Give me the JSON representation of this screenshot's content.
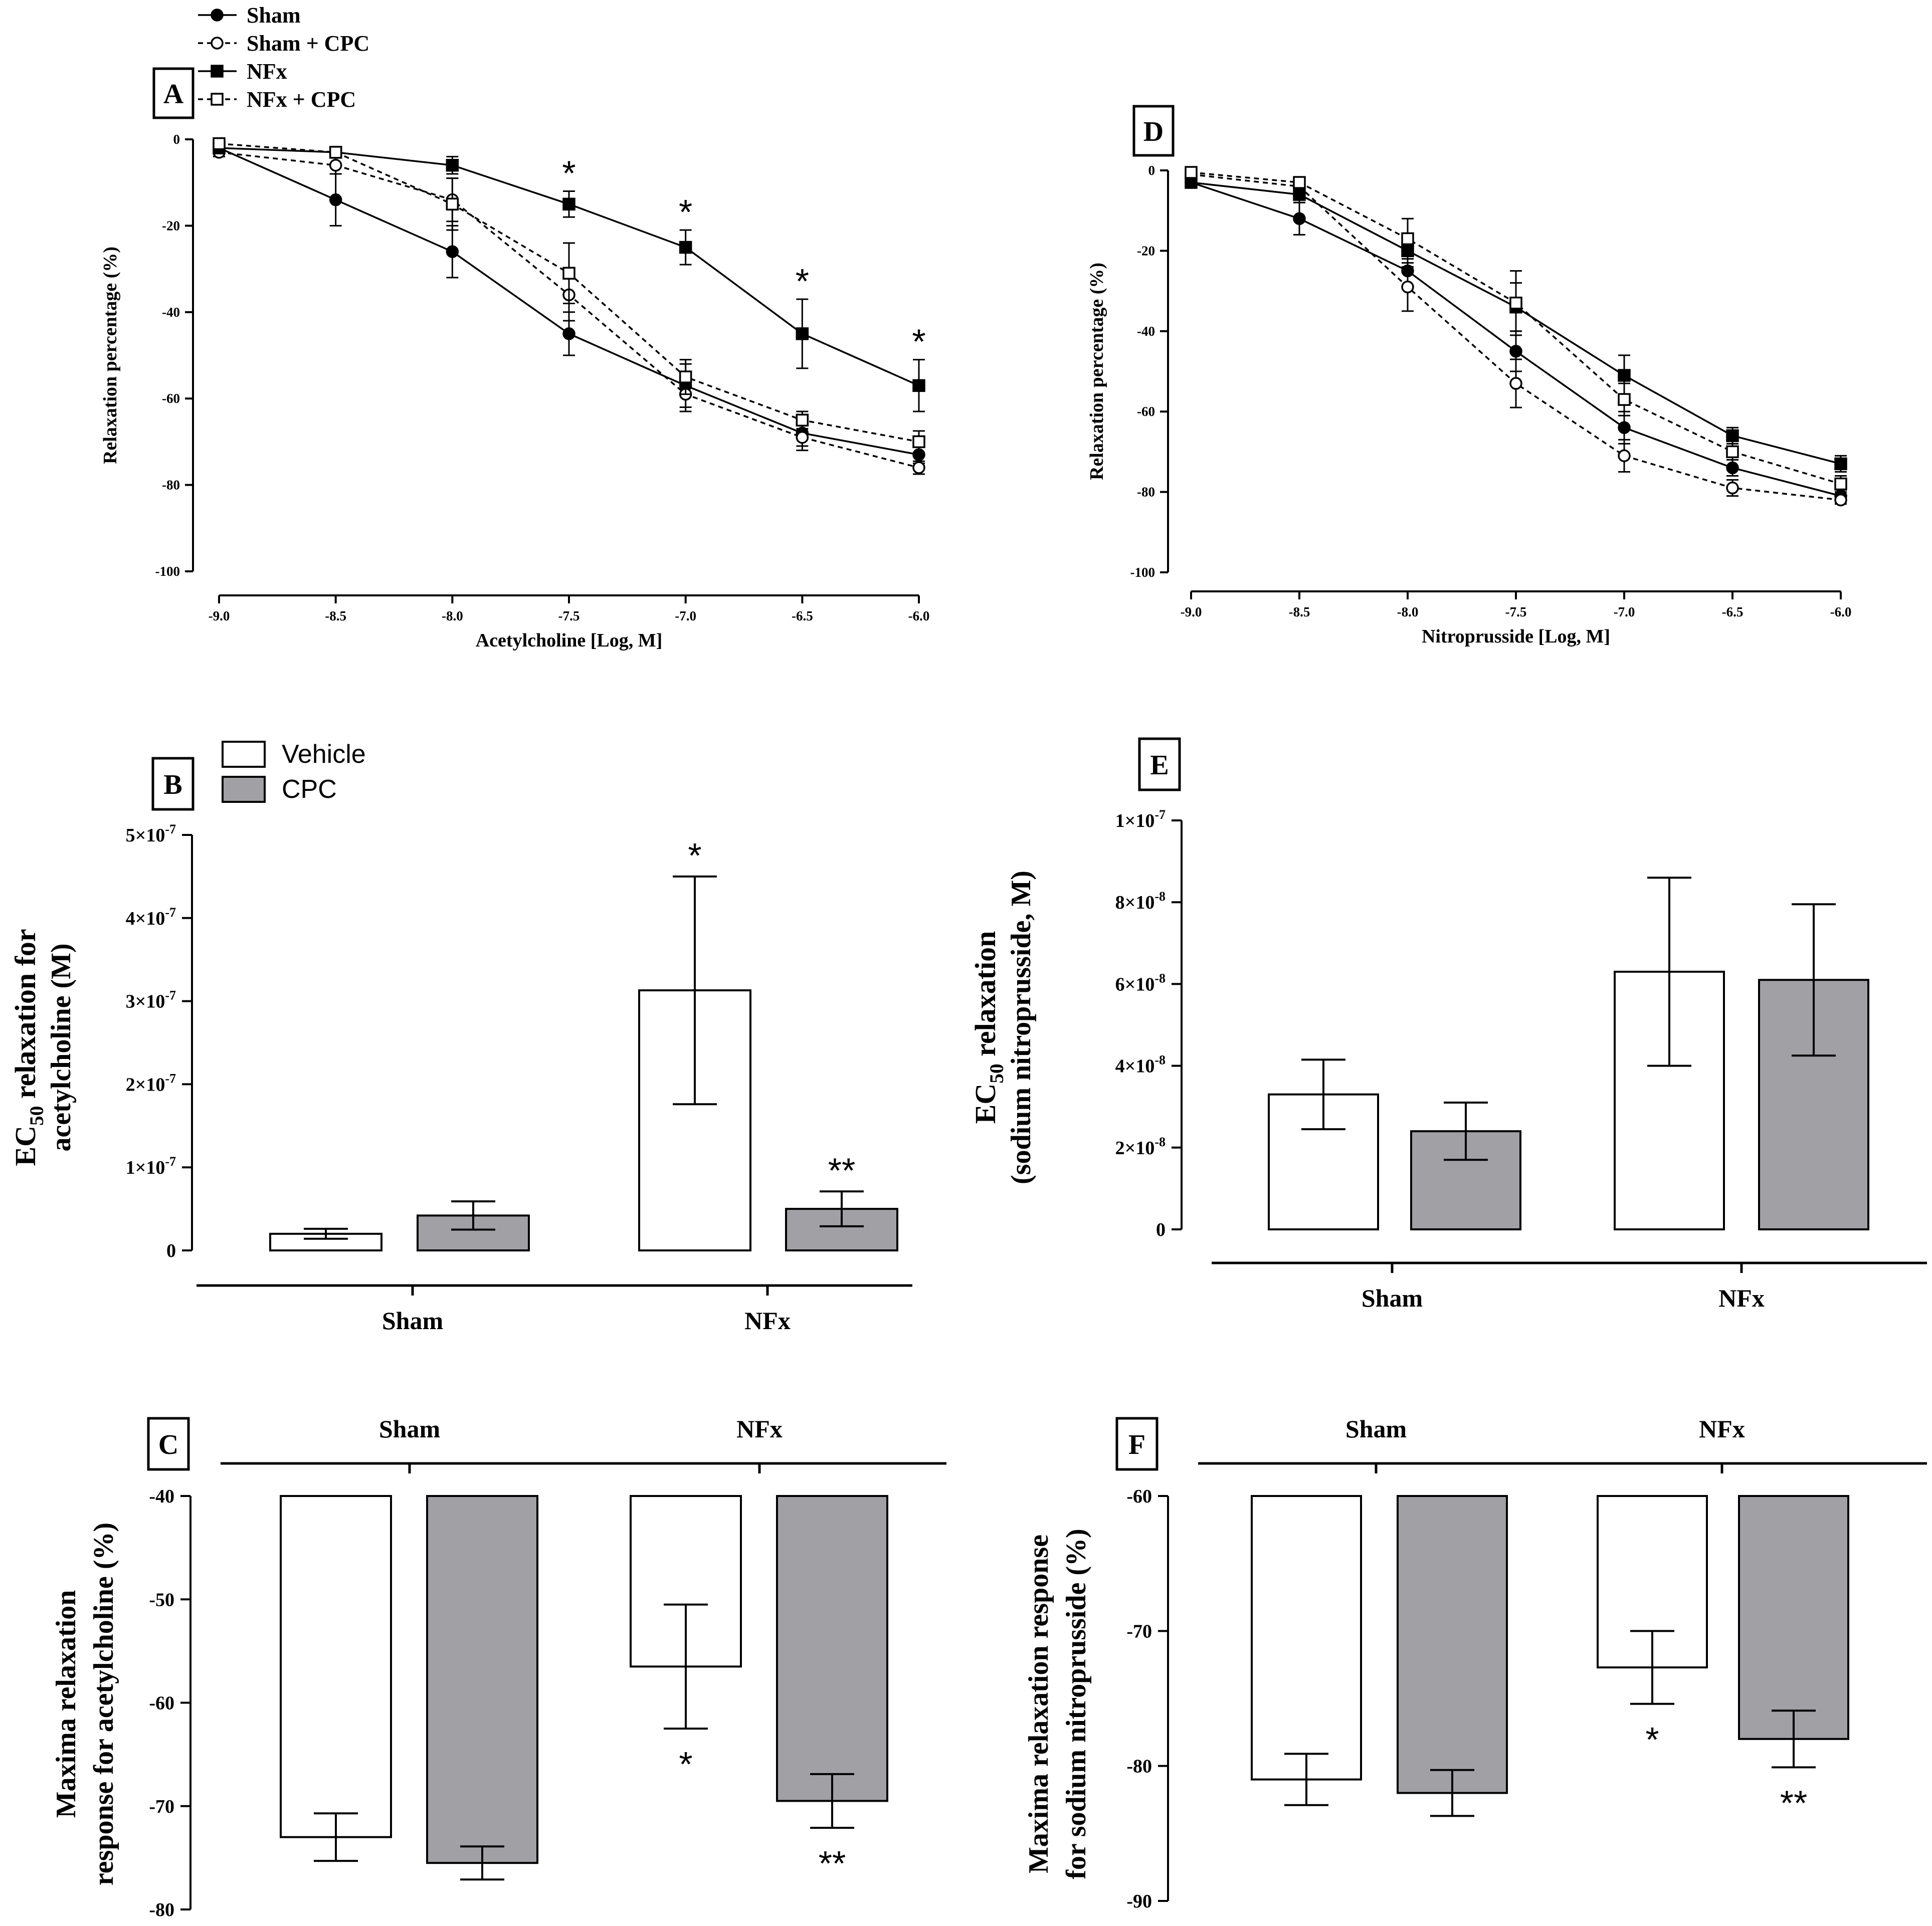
{
  "legend_lines": [
    {
      "label": "Sham",
      "marker": "filled-circle",
      "dash": false
    },
    {
      "label": "Sham + CPC",
      "marker": "open-circle",
      "dash": true
    },
    {
      "label": "NFx",
      "marker": "filled-square",
      "dash": false
    },
    {
      "label": "NFx + CPC",
      "marker": "open-square",
      "dash": true
    }
  ],
  "legend_bars": [
    {
      "label": "Vehicle",
      "color": "#ffffff"
    },
    {
      "label": "CPC",
      "color": "#a0a0a5"
    }
  ],
  "colors": {
    "vehicle": "#ffffff",
    "cpc": "#a0a0a5",
    "ink": "#000000"
  },
  "chart_data": [
    {
      "panel": "A",
      "type": "line",
      "xlabel": "Acetylcholine  [Log,  M]",
      "ylabel": "Relaxation percentage (%)",
      "xlim": [
        -9.0,
        -6.0
      ],
      "ylim": [
        -100,
        0
      ],
      "x": [
        -9.0,
        -8.5,
        -8.0,
        -7.5,
        -7.0,
        -6.5,
        -6.0
      ],
      "x_ticks": [
        "-9.0",
        "-8.5",
        "-8.0",
        "-7.5",
        "-7.0",
        "-6.5",
        "-6.0"
      ],
      "y_ticks": [
        "0",
        "-20",
        "-40",
        "-60",
        "-80",
        "-100"
      ],
      "series": [
        {
          "name": "Sham",
          "values": [
            -2,
            -14,
            -26,
            -45,
            -57,
            -68,
            -73
          ],
          "errors": [
            1,
            6,
            6,
            5,
            5,
            3,
            2
          ]
        },
        {
          "name": "Sham + CPC",
          "values": [
            -3,
            -6,
            -14,
            -36,
            -59,
            -69,
            -76
          ],
          "errors": [
            1,
            2,
            5,
            6,
            4,
            3,
            1.5
          ]
        },
        {
          "name": "NFx",
          "values": [
            -2,
            -3,
            -6,
            -15,
            -25,
            -45,
            -57
          ],
          "errors": [
            1,
            1,
            2,
            3,
            4,
            8,
            6
          ]
        },
        {
          "name": "NFx + CPC",
          "values": [
            -1,
            -3,
            -15,
            -31,
            -55,
            -65,
            -70
          ],
          "errors": [
            1,
            1,
            6,
            7,
            4,
            2,
            2.5
          ]
        }
      ],
      "annotations": [
        {
          "x": -7.5,
          "text": "*"
        },
        {
          "x": -7.0,
          "text": "*"
        },
        {
          "x": -6.5,
          "text": "*"
        },
        {
          "x": -6.0,
          "text": "*"
        }
      ]
    },
    {
      "panel": "D",
      "type": "line",
      "xlabel": "Nitroprusside [Log,  M]",
      "ylabel": "Relaxation percentage (%)",
      "xlim": [
        -9.0,
        -6.0
      ],
      "ylim": [
        -100,
        0
      ],
      "x": [
        -9.0,
        -8.5,
        -8.0,
        -7.5,
        -7.0,
        -6.5,
        -6.0
      ],
      "x_ticks": [
        "-9.0",
        "-8.5",
        "-8.0",
        "-7.5",
        "-7.0",
        "-6.5",
        "-6.0"
      ],
      "y_ticks": [
        "0",
        "-20",
        "-40",
        "-60",
        "-80",
        "-100"
      ],
      "series": [
        {
          "name": "Sham",
          "values": [
            -3,
            -12,
            -25,
            -45,
            -64,
            -74,
            -81
          ],
          "errors": [
            1,
            4,
            4,
            5,
            4,
            2,
            1.5
          ]
        },
        {
          "name": "Sham + CPC",
          "values": [
            -1,
            -4,
            -29,
            -53,
            -71,
            -79,
            -82
          ],
          "errors": [
            0.5,
            1,
            6,
            6,
            4,
            2,
            1
          ]
        },
        {
          "name": "NFx",
          "values": [
            -3,
            -6,
            -20,
            -34,
            -51,
            -66,
            -73
          ],
          "errors": [
            1,
            2,
            4,
            6,
            5,
            2,
            2
          ]
        },
        {
          "name": "NFx + CPC",
          "values": [
            -0.5,
            -3,
            -17,
            -33,
            -57,
            -70,
            -78
          ],
          "errors": [
            0.5,
            1,
            5,
            8,
            4,
            2,
            2
          ]
        }
      ],
      "annotations": []
    },
    {
      "panel": "B",
      "type": "bar",
      "ylabel_main": "EC",
      "ylabel_sub": "50",
      "ylabel_rest": " relaxation for",
      "ylabel_line2": "acetylcholine (M)",
      "groups": [
        "Sham",
        "NFx"
      ],
      "series_names": [
        "Vehicle",
        "CPC"
      ],
      "values": [
        [
          2e-08,
          4.2e-08
        ],
        [
          3.13e-07,
          5e-08
        ]
      ],
      "errors": [
        [
          6e-09,
          1.7e-08
        ],
        [
          1.37e-07,
          2.1e-08
        ]
      ],
      "ylim": [
        0,
        5e-07
      ],
      "y_ticks": [
        {
          "v": 0,
          "base": "0",
          "exp": ""
        },
        {
          "v": 1e-07,
          "base": "1×10",
          "exp": "-7"
        },
        {
          "v": 2e-07,
          "base": "2×10",
          "exp": "-7"
        },
        {
          "v": 3e-07,
          "base": "3×10",
          "exp": "-7"
        },
        {
          "v": 4e-07,
          "base": "4×10",
          "exp": "-7"
        },
        {
          "v": 5e-07,
          "base": "5×10",
          "exp": "-7"
        }
      ],
      "annotations": [
        [
          {
            "text": ""
          },
          {
            "text": ""
          }
        ],
        [
          {
            "text": "*"
          },
          {
            "text": "**"
          }
        ]
      ]
    },
    {
      "panel": "E",
      "type": "bar",
      "ylabel_main": "EC",
      "ylabel_sub": "50",
      "ylabel_rest": "  relaxation",
      "ylabel_line2": "(sodium nitroprusside, M)",
      "groups": [
        "Sham",
        "NFx"
      ],
      "series_names": [
        "Vehicle",
        "CPC"
      ],
      "values": [
        [
          3.3e-08,
          2.4e-08
        ],
        [
          6.3e-08,
          6.1e-08
        ]
      ],
      "errors": [
        [
          8.5e-09,
          7e-09
        ],
        [
          2.3e-08,
          1.85e-08
        ]
      ],
      "ylim": [
        0,
        1e-07
      ],
      "y_ticks": [
        {
          "v": 0,
          "base": "0",
          "exp": ""
        },
        {
          "v": 2e-08,
          "base": "2×10",
          "exp": "-8"
        },
        {
          "v": 4e-08,
          "base": "4×10",
          "exp": "-8"
        },
        {
          "v": 6e-08,
          "base": "6×10",
          "exp": "-8"
        },
        {
          "v": 8e-08,
          "base": "8×10",
          "exp": "-8"
        },
        {
          "v": 1e-07,
          "base": "1×10",
          "exp": "-7"
        }
      ],
      "annotations": [
        [
          {
            "text": ""
          },
          {
            "text": ""
          }
        ],
        [
          {
            "text": ""
          },
          {
            "text": ""
          }
        ]
      ]
    },
    {
      "panel": "C",
      "type": "bar",
      "ylabel_line1": "Maxima relaxation",
      "ylabel_line2": "response for acetylcholine (%)",
      "groups": [
        "Sham",
        "NFx"
      ],
      "series_names": [
        "Vehicle",
        "CPC"
      ],
      "values": [
        [
          -73,
          -75.5
        ],
        [
          -56.5,
          -69.5
        ]
      ],
      "errors": [
        [
          2.3,
          1.6
        ],
        [
          6,
          2.6
        ]
      ],
      "ylim": [
        -80,
        -40
      ],
      "y_ticks": [
        "-40",
        "-50",
        "-60",
        "-70",
        "-80"
      ],
      "annotations": [
        [
          {
            "text": ""
          },
          {
            "text": ""
          }
        ],
        [
          {
            "text": "*"
          },
          {
            "text": "**"
          }
        ]
      ]
    },
    {
      "panel": "F",
      "type": "bar",
      "ylabel_line1": "Maxima relaxation response",
      "ylabel_line2": "for sodium nitroprusside (%)",
      "groups": [
        "Sham",
        "NFx"
      ],
      "series_names": [
        "Vehicle",
        "CPC"
      ],
      "values": [
        [
          -81,
          -82
        ],
        [
          -72.7,
          -78
        ]
      ],
      "errors": [
        [
          1.9,
          1.7
        ],
        [
          2.7,
          2.1
        ]
      ],
      "ylim": [
        -90,
        -60
      ],
      "y_ticks": [
        "-60",
        "-70",
        "-80",
        "-90"
      ],
      "annotations": [
        [
          {
            "text": ""
          },
          {
            "text": ""
          }
        ],
        [
          {
            "text": "*"
          },
          {
            "text": "**"
          }
        ]
      ]
    }
  ]
}
